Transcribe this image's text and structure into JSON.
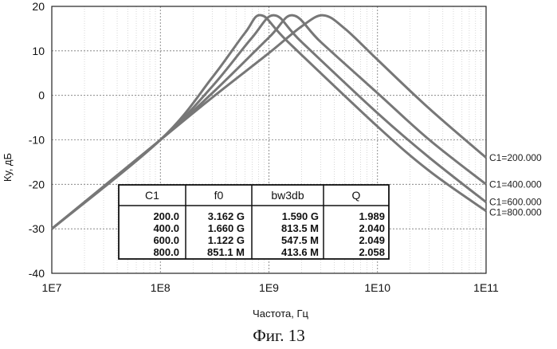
{
  "chart_data": {
    "type": "line",
    "xlabel": "Частота, Гц",
    "ylabel": "Ку, дБ",
    "x_scale": "log",
    "xlim": [
      10000000,
      100000000000
    ],
    "ylim": [
      -40,
      20
    ],
    "x_ticks": [
      "1E7",
      "1E8",
      "1E9",
      "1E10",
      "1E11"
    ],
    "y_ticks": [
      "20",
      "10",
      "0",
      "-10",
      "-20",
      "-30",
      "-40"
    ],
    "grid": true,
    "series": [
      {
        "name": "C1=200.000",
        "color": "#777777",
        "x": [
          10000000,
          100000000,
          300000000,
          1000000000,
          2000000000,
          3162000000,
          5000000000,
          10000000000,
          30000000000,
          100000000000
        ],
        "y": [
          -30,
          -10,
          -0.5,
          9.5,
          15.5,
          18,
          15,
          8,
          -3,
          -14
        ]
      },
      {
        "name": "C1=400.000",
        "color": "#777777",
        "x": [
          10000000,
          100000000,
          300000000,
          1000000000,
          1660000000,
          3000000000,
          10000000000,
          30000000000,
          100000000000
        ],
        "y": [
          -30,
          -10,
          0.5,
          13,
          18,
          12,
          0.5,
          -10,
          -20
        ]
      },
      {
        "name": "C1=600.000",
        "color": "#777777",
        "x": [
          10000000,
          100000000,
          300000000,
          700000000,
          1122000000,
          2000000000,
          10000000000,
          30000000000,
          100000000000
        ],
        "y": [
          -30,
          -10,
          2,
          13,
          18,
          12,
          -4,
          -14,
          -24
        ]
      },
      {
        "name": "C1=800.000",
        "color": "#777777",
        "x": [
          10000000,
          100000000,
          300000000,
          600000000,
          851100000,
          1500000000,
          10000000000,
          30000000000,
          100000000000
        ],
        "y": [
          -30,
          -10,
          4,
          14,
          18,
          12,
          -7,
          -17,
          -26
        ]
      }
    ],
    "table": {
      "headers": [
        "C1",
        "f0",
        "bw3db",
        "Q"
      ],
      "rows": [
        [
          "200.0",
          "3.162 G",
          "1.590 G",
          "1.989"
        ],
        [
          "400.0",
          "1.660 G",
          "813.5 M",
          "2.040"
        ],
        [
          "600.0",
          "1.122 G",
          "547.5 M",
          "2.049"
        ],
        [
          "800.0",
          "851.1 M",
          "413.6 M",
          "2.058"
        ]
      ]
    },
    "caption": "Фиг. 13"
  }
}
